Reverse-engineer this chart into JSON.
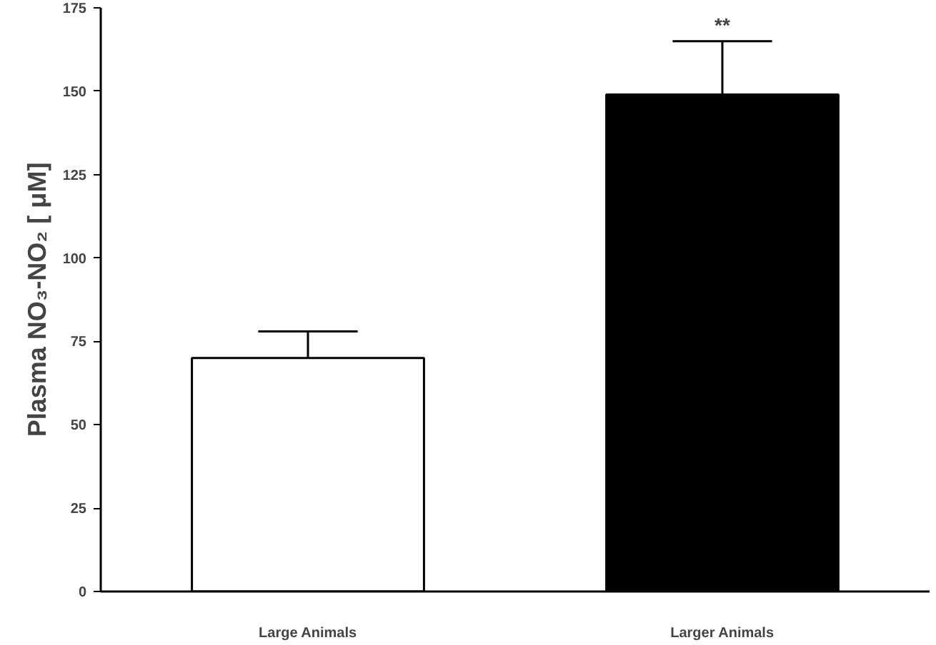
{
  "chart_data": {
    "type": "bar",
    "ylabel": "Plasma NO₃-NO₂ [ μM]",
    "categories": [
      "Large Animals",
      "Larger Animals"
    ],
    "values": [
      70,
      149
    ],
    "colors": [
      "#ffffff",
      "#000000"
    ],
    "errors": [
      [
        70,
        78
      ],
      [
        149,
        165
      ]
    ],
    "ylim": [
      0,
      175
    ],
    "yticks": [
      0,
      25,
      50,
      75,
      100,
      125,
      150,
      175
    ],
    "grid": false,
    "annotations": [
      "**"
    ]
  }
}
